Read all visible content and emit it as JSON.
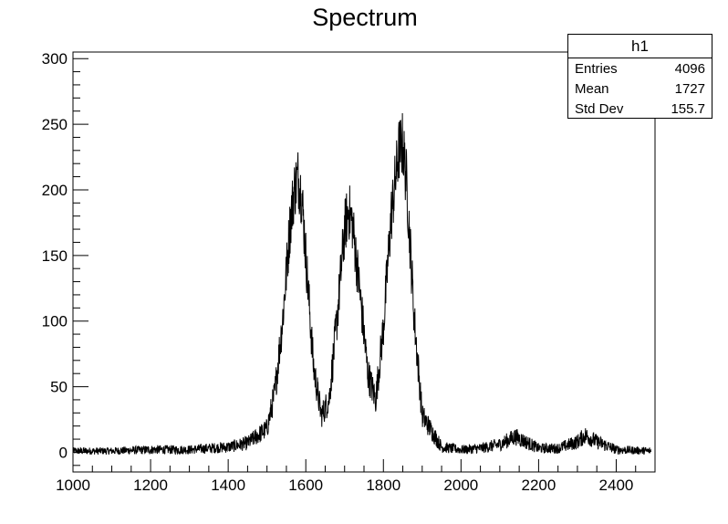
{
  "chart_data": {
    "type": "line",
    "title": "Spectrum",
    "xlabel": "",
    "ylabel": "",
    "xlim": [
      1000,
      2500
    ],
    "ylim": [
      -15,
      305
    ],
    "x_ticks": [
      1000,
      1200,
      1400,
      1600,
      1800,
      2000,
      2200,
      2400
    ],
    "y_ticks": [
      0,
      50,
      100,
      150,
      200,
      250,
      300
    ],
    "grid": false,
    "line_color": "#000000",
    "series": [
      {
        "x": [
          1000,
          1100,
          1200,
          1300,
          1400,
          1450,
          1500,
          1520,
          1540,
          1560,
          1570,
          1580,
          1590,
          1600,
          1620,
          1640,
          1660,
          1680,
          1700,
          1710,
          1720,
          1740,
          1760,
          1780,
          1800,
          1820,
          1840,
          1850,
          1860,
          1880,
          1900,
          1950,
          2000,
          2050,
          2100,
          2140,
          2180,
          2200,
          2250,
          2300,
          2320,
          2350,
          2400,
          2490
        ],
        "values": [
          1,
          1,
          2,
          2,
          4,
          7,
          18,
          45,
          100,
          175,
          200,
          210,
          195,
          150,
          65,
          28,
          40,
          100,
          170,
          185,
          175,
          120,
          60,
          40,
          95,
          180,
          230,
          235,
          205,
          100,
          28,
          4,
          2,
          3,
          6,
          12,
          6,
          3,
          3,
          8,
          13,
          8,
          2,
          1
        ]
      }
    ],
    "stats_box": {
      "name": "h1",
      "entries_label": "Entries",
      "entries": "4096",
      "mean_label": "Mean",
      "mean": "1727",
      "stddev_label": "Std Dev",
      "stddev": "155.7"
    }
  }
}
